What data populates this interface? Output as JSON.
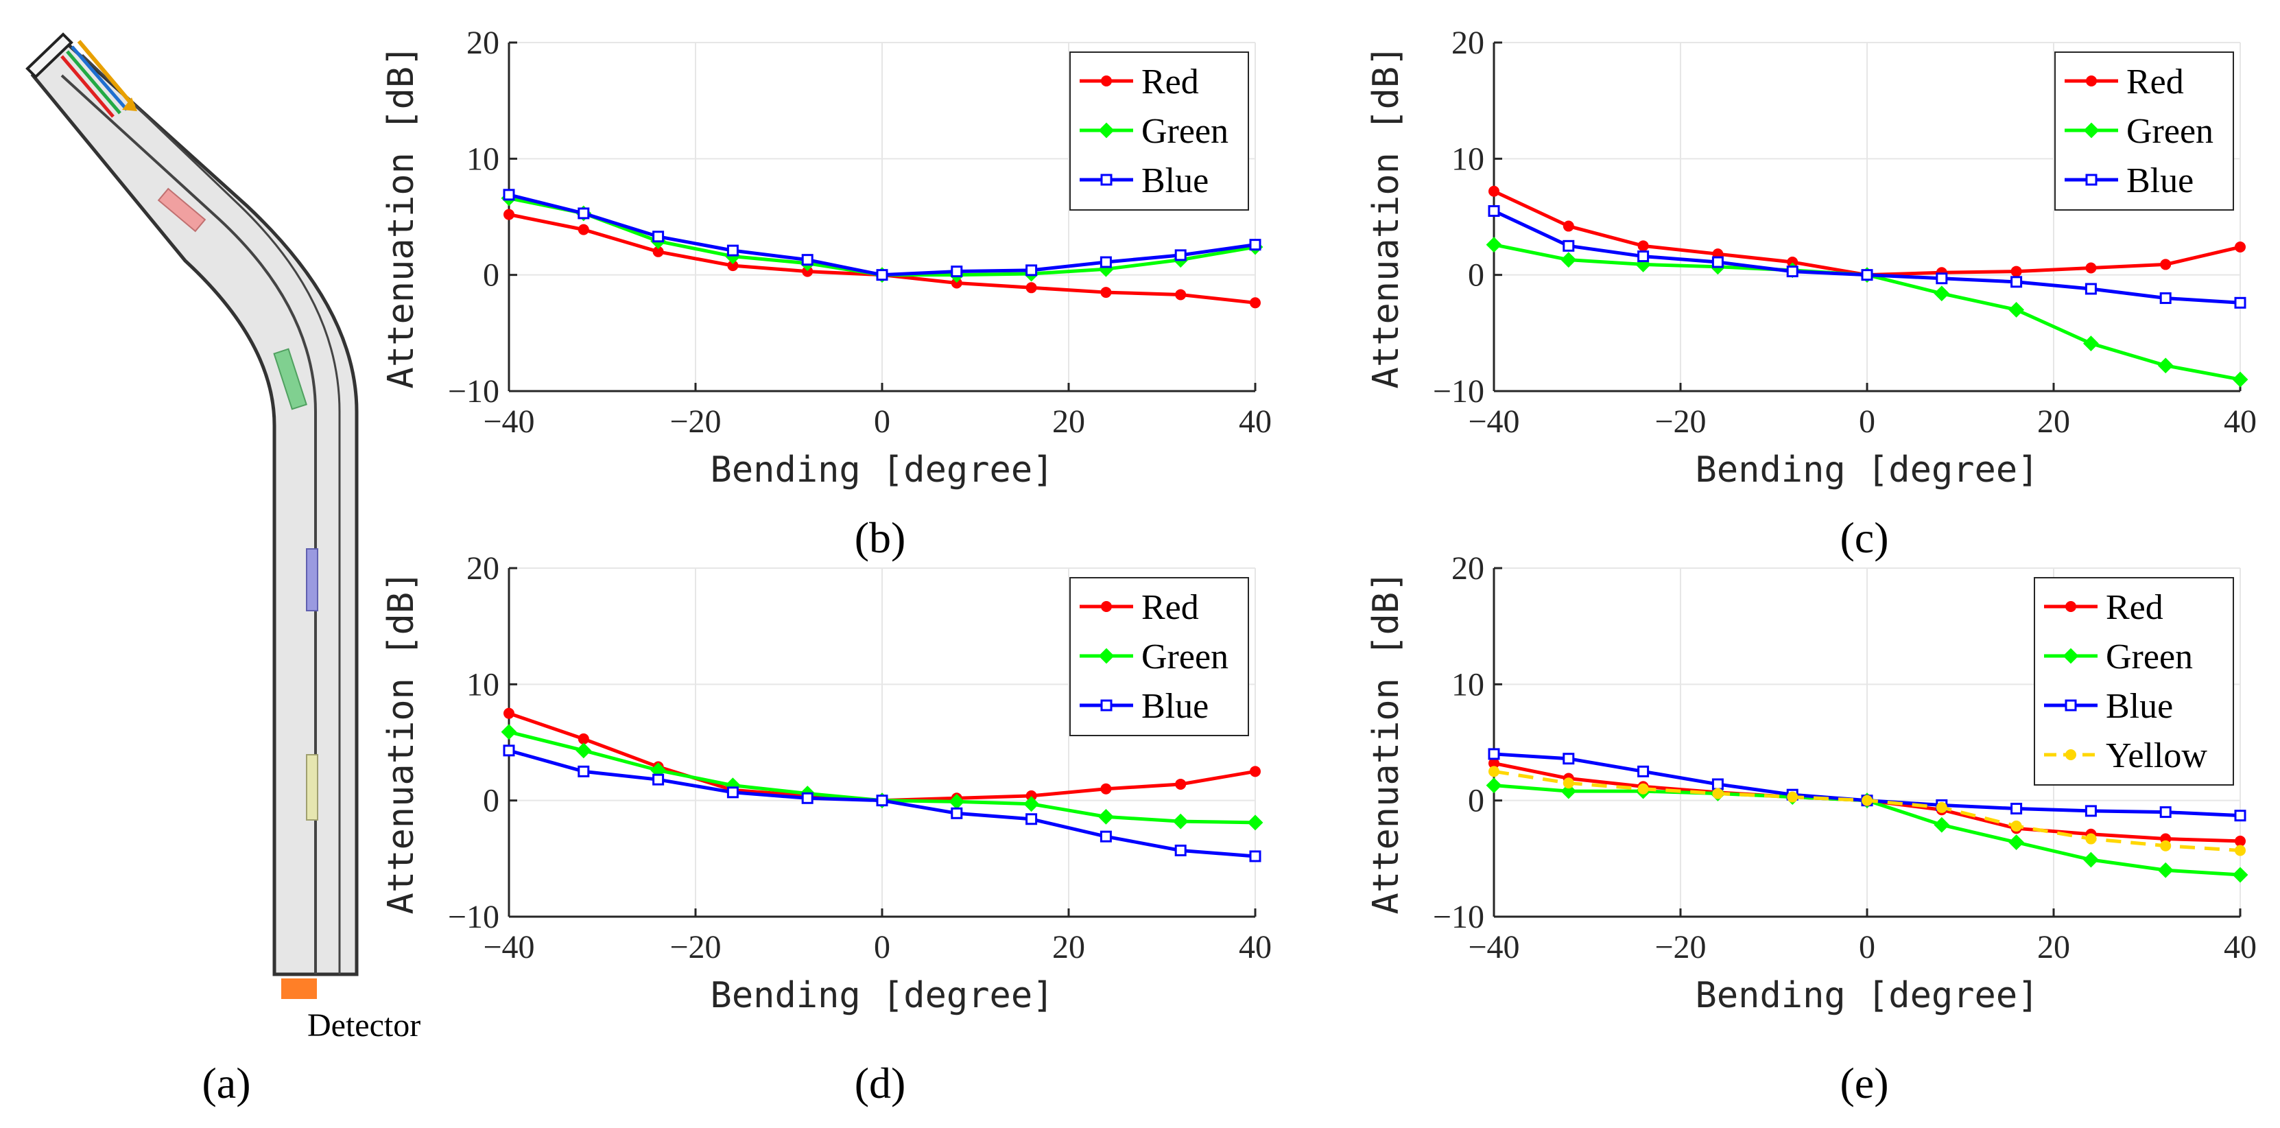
{
  "figure": {
    "panel_a": {
      "caption": "(a)",
      "detector_label": "Detector"
    },
    "colors": {
      "red": "#ff0000",
      "green": "#00ff00",
      "blue": "#0000ff",
      "yellow": "#ffd700",
      "axis": "#262626",
      "grid": "#e6e6e6"
    }
  },
  "chart_data": [
    {
      "id": "b",
      "type": "line",
      "caption": "(b)",
      "xlabel": "Bending [degree]",
      "ylabel": "Attenuation [dB]",
      "xlim": [
        -40,
        40
      ],
      "ylim": [
        -10,
        20
      ],
      "xticks": [
        -40,
        -20,
        0,
        20,
        40
      ],
      "yticks": [
        -10,
        0,
        10,
        20
      ],
      "grid": true,
      "legend_position": "top-right",
      "x": [
        -40,
        -32,
        -24,
        -16,
        -8,
        0,
        8,
        16,
        24,
        32,
        40
      ],
      "series": [
        {
          "name": "Red",
          "color": "#ff0000",
          "marker": "circle",
          "values": [
            5.2,
            3.9,
            2.0,
            0.8,
            0.3,
            0,
            -0.7,
            -1.1,
            -1.5,
            -1.7,
            -2.4
          ]
        },
        {
          "name": "Green",
          "color": "#00ff00",
          "marker": "diamond",
          "values": [
            6.6,
            5.3,
            2.9,
            1.6,
            1.0,
            0,
            0.0,
            0.1,
            0.5,
            1.3,
            2.4
          ]
        },
        {
          "name": "Blue",
          "color": "#0000ff",
          "marker": "square",
          "values": [
            6.9,
            5.3,
            3.3,
            2.1,
            1.3,
            0,
            0.3,
            0.4,
            1.1,
            1.7,
            2.6
          ]
        }
      ]
    },
    {
      "id": "c",
      "type": "line",
      "caption": "(c)",
      "xlabel": "Bending [degree]",
      "ylabel": "Attenuation [dB]",
      "xlim": [
        -40,
        40
      ],
      "ylim": [
        -10,
        20
      ],
      "xticks": [
        -40,
        -20,
        0,
        20,
        40
      ],
      "yticks": [
        -10,
        0,
        10,
        20
      ],
      "grid": true,
      "legend_position": "top-right",
      "x": [
        -40,
        -32,
        -24,
        -16,
        -8,
        0,
        8,
        16,
        24,
        32,
        40
      ],
      "series": [
        {
          "name": "Red",
          "color": "#ff0000",
          "marker": "circle",
          "values": [
            7.2,
            4.2,
            2.5,
            1.8,
            1.1,
            0,
            0.2,
            0.3,
            0.6,
            0.9,
            2.4
          ]
        },
        {
          "name": "Green",
          "color": "#00ff00",
          "marker": "diamond",
          "values": [
            2.6,
            1.3,
            0.9,
            0.7,
            0.4,
            0,
            -1.6,
            -3.0,
            -5.9,
            -7.8,
            -9.0
          ]
        },
        {
          "name": "Blue",
          "color": "#0000ff",
          "marker": "square",
          "values": [
            5.5,
            2.5,
            1.6,
            1.1,
            0.3,
            0,
            -0.3,
            -0.6,
            -1.2,
            -2.0,
            -2.4
          ]
        }
      ]
    },
    {
      "id": "d",
      "type": "line",
      "caption": "(d)",
      "xlabel": "Bending [degree]",
      "ylabel": "Attenuation [dB]",
      "xlim": [
        -40,
        40
      ],
      "ylim": [
        -10,
        20
      ],
      "xticks": [
        -40,
        -20,
        0,
        20,
        40
      ],
      "yticks": [
        -10,
        0,
        10,
        20
      ],
      "grid": true,
      "legend_position": "top-right",
      "x": [
        -40,
        -32,
        -24,
        -16,
        -8,
        0,
        8,
        16,
        24,
        32,
        40
      ],
      "series": [
        {
          "name": "Red",
          "color": "#ff0000",
          "marker": "circle",
          "values": [
            7.5,
            5.3,
            2.9,
            0.9,
            0.4,
            0,
            0.2,
            0.4,
            1.0,
            1.4,
            2.5
          ]
        },
        {
          "name": "Green",
          "color": "#00ff00",
          "marker": "diamond",
          "values": [
            5.9,
            4.3,
            2.6,
            1.3,
            0.6,
            0,
            -0.1,
            -0.3,
            -1.4,
            -1.8,
            -1.9
          ]
        },
        {
          "name": "Blue",
          "color": "#0000ff",
          "marker": "square",
          "values": [
            4.3,
            2.5,
            1.8,
            0.7,
            0.2,
            0,
            -1.1,
            -1.6,
            -3.1,
            -4.3,
            -4.8
          ]
        }
      ]
    },
    {
      "id": "e",
      "type": "line",
      "caption": "(e)",
      "xlabel": "Bending [degree]",
      "ylabel": "Attenuation [dB]",
      "xlim": [
        -40,
        40
      ],
      "ylim": [
        -10,
        20
      ],
      "xticks": [
        -40,
        -20,
        0,
        20,
        40
      ],
      "yticks": [
        -10,
        0,
        10,
        20
      ],
      "grid": true,
      "legend_position": "top-right",
      "x": [
        -40,
        -32,
        -24,
        -16,
        -8,
        0,
        8,
        16,
        24,
        32,
        40
      ],
      "series": [
        {
          "name": "Red",
          "color": "#ff0000",
          "marker": "circle",
          "values": [
            3.2,
            1.9,
            1.2,
            0.7,
            0.3,
            0,
            -0.8,
            -2.4,
            -2.9,
            -3.3,
            -3.5
          ]
        },
        {
          "name": "Green",
          "color": "#00ff00",
          "marker": "diamond",
          "values": [
            1.3,
            0.8,
            0.8,
            0.6,
            0.3,
            0,
            -2.1,
            -3.6,
            -5.1,
            -6.0,
            -6.4
          ]
        },
        {
          "name": "Blue",
          "color": "#0000ff",
          "marker": "square",
          "values": [
            4.0,
            3.6,
            2.5,
            1.4,
            0.5,
            0,
            -0.4,
            -0.7,
            -0.9,
            -1.0,
            -1.3
          ]
        },
        {
          "name": "Yellow",
          "color": "#ffd700",
          "marker": "circle",
          "dashed": true,
          "values": [
            2.5,
            1.5,
            1.0,
            0.6,
            0.3,
            0,
            -0.6,
            -2.2,
            -3.3,
            -3.9,
            -4.3
          ]
        }
      ]
    }
  ]
}
